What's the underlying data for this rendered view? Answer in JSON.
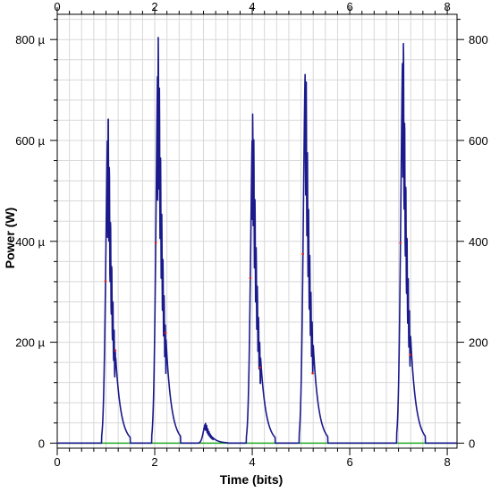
{
  "chart_data": {
    "type": "line",
    "title": "",
    "xlabel": "Time (bits)",
    "ylabel": "Power (W)",
    "xlim": [
      0,
      8.2
    ],
    "ylim": [
      -10,
      850
    ],
    "x_ticks": [
      0,
      2,
      4,
      6,
      8
    ],
    "x_tick_labels": [
      "0",
      "2",
      "4",
      "6",
      "8"
    ],
    "y_ticks": [
      0,
      200,
      400,
      600,
      800
    ],
    "y_tick_labels": [
      "0",
      "200 µ",
      "400 µ",
      "600 µ",
      "800 µ"
    ],
    "grid": true,
    "colors": {
      "signal": "#1a1a8c",
      "noise": "#cc2222",
      "baseline": "#22aa22",
      "grid": "#d8d8d8",
      "frame": "#000000"
    },
    "series": [
      {
        "pulses": [
          {
            "center": 1.05,
            "peak": 660
          },
          {
            "center": 2.08,
            "peak": 815
          },
          {
            "center": 3.05,
            "peak": 40
          },
          {
            "center": 4.02,
            "peak": 672
          },
          {
            "center": 5.1,
            "peak": 770
          },
          {
            "center": 7.1,
            "peak": 815
          }
        ],
        "baseline": 0
      }
    ]
  }
}
